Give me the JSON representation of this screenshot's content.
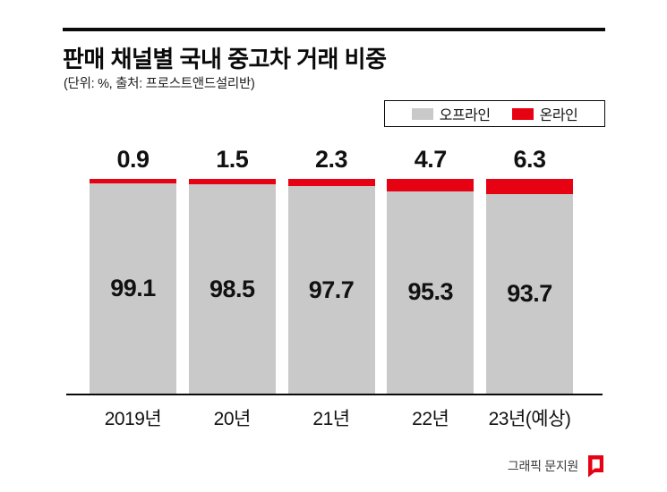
{
  "header": {
    "title": "판매 채널별 국내 중고차 거래 비중",
    "subtitle": "(단위: %, 출처: 프로스트앤드설리반)"
  },
  "legend": {
    "offline_label": "오프라인",
    "online_label": "온라인"
  },
  "colors": {
    "offline": "#c9c9c9",
    "online": "#e60113",
    "rule": "#0a0a0a"
  },
  "chart_data": {
    "type": "bar",
    "stacked": true,
    "title": "판매 채널별 국내 중고차 거래 비중",
    "unit": "%",
    "source": "프로스트앤드설리반",
    "categories": [
      "2019년",
      "20년",
      "21년",
      "22년",
      "23년(예상)"
    ],
    "series": [
      {
        "name": "오프라인",
        "color": "#c9c9c9",
        "values": [
          99.1,
          98.5,
          97.7,
          95.3,
          93.7
        ]
      },
      {
        "name": "온라인",
        "color": "#e60113",
        "values": [
          0.9,
          1.5,
          2.3,
          4.7,
          6.3
        ]
      }
    ],
    "ylim": [
      0,
      100
    ],
    "legend_position": "top-right",
    "grid": false
  },
  "footer": {
    "credit": "그래픽 문지원"
  }
}
